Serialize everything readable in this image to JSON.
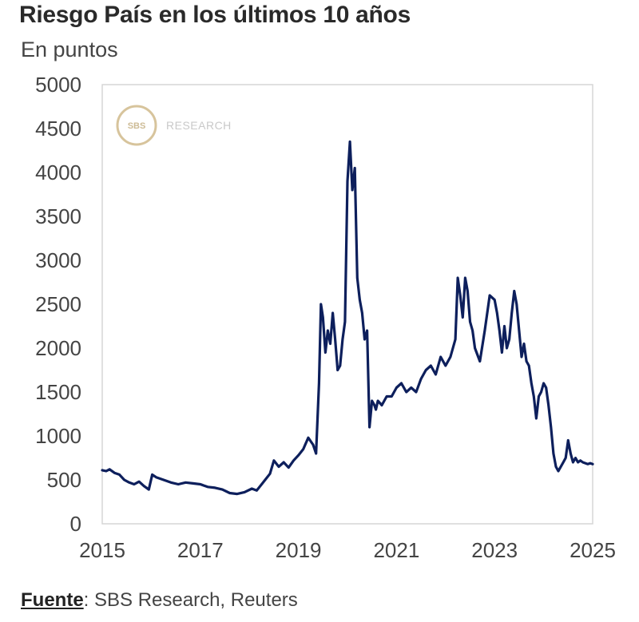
{
  "header": {
    "title": "Riesgo País en los últimos 10 años",
    "subtitle": "En puntos"
  },
  "source": {
    "label": "Fuente",
    "text": ": SBS Research, Reuters"
  },
  "watermark": {
    "badge": "SBS",
    "text": "RESEARCH"
  },
  "colors": {
    "line": "#0d1f5c",
    "frame": "#d6d6d6",
    "badge_ring": "#d7c49c"
  },
  "chart_data": {
    "type": "line",
    "title": "Riesgo País en los últimos 10 años",
    "subtitle": "En puntos",
    "xlabel": "",
    "ylabel": "",
    "xlim": [
      2015,
      2025
    ],
    "ylim": [
      0,
      5000
    ],
    "x_ticks": [
      2015,
      2017,
      2019,
      2021,
      2023,
      2025
    ],
    "y_ticks": [
      0,
      500,
      1000,
      1500,
      2000,
      2500,
      3000,
      3500,
      4000,
      4500,
      5000
    ],
    "grid": false,
    "series": [
      {
        "name": "Riesgo País",
        "x": [
          2015.0,
          2015.08,
          2015.15,
          2015.25,
          2015.35,
          2015.45,
          2015.55,
          2015.65,
          2015.75,
          2015.85,
          2015.95,
          2016.02,
          2016.1,
          2016.25,
          2016.4,
          2016.55,
          2016.7,
          2016.85,
          2017.0,
          2017.15,
          2017.3,
          2017.45,
          2017.6,
          2017.75,
          2017.9,
          2018.05,
          2018.15,
          2018.25,
          2018.35,
          2018.42,
          2018.5,
          2018.6,
          2018.7,
          2018.8,
          2018.9,
          2019.0,
          2019.1,
          2019.2,
          2019.3,
          2019.36,
          2019.42,
          2019.46,
          2019.5,
          2019.55,
          2019.6,
          2019.65,
          2019.7,
          2019.75,
          2019.8,
          2019.85,
          2019.9,
          2019.95,
          2020.0,
          2020.05,
          2020.1,
          2020.15,
          2020.2,
          2020.25,
          2020.3,
          2020.35,
          2020.4,
          2020.45,
          2020.5,
          2020.55,
          2020.58,
          2020.62,
          2020.7,
          2020.8,
          2020.9,
          2021.0,
          2021.1,
          2021.2,
          2021.3,
          2021.4,
          2021.5,
          2021.6,
          2021.7,
          2021.8,
          2021.9,
          2022.0,
          2022.1,
          2022.2,
          2022.25,
          2022.3,
          2022.35,
          2022.4,
          2022.45,
          2022.5,
          2022.55,
          2022.6,
          2022.7,
          2022.8,
          2022.9,
          2023.0,
          2023.05,
          2023.1,
          2023.15,
          2023.2,
          2023.25,
          2023.3,
          2023.35,
          2023.4,
          2023.45,
          2023.5,
          2023.55,
          2023.6,
          2023.65,
          2023.7,
          2023.75,
          2023.8,
          2023.85,
          2023.9,
          2023.95,
          2024.0,
          2024.05,
          2024.1,
          2024.15,
          2024.2,
          2024.25,
          2024.3,
          2024.35,
          2024.4,
          2024.45,
          2024.5,
          2024.55,
          2024.6,
          2024.65,
          2024.7,
          2024.75,
          2024.8,
          2024.85,
          2024.9,
          2024.95,
          2025.0
        ],
        "values": [
          610,
          600,
          620,
          580,
          560,
          500,
          470,
          450,
          480,
          430,
          390,
          560,
          530,
          500,
          470,
          450,
          470,
          460,
          450,
          420,
          410,
          390,
          350,
          340,
          360,
          400,
          380,
          450,
          520,
          570,
          720,
          650,
          700,
          640,
          720,
          780,
          850,
          980,
          900,
          800,
          1600,
          2500,
          2350,
          1950,
          2200,
          2050,
          2400,
          2100,
          1750,
          1800,
          2100,
          2300,
          3900,
          4350,
          3800,
          4050,
          2800,
          2550,
          2400,
          2100,
          2200,
          1100,
          1400,
          1350,
          1300,
          1400,
          1350,
          1450,
          1450,
          1550,
          1600,
          1500,
          1550,
          1500,
          1650,
          1750,
          1800,
          1700,
          1900,
          1800,
          1900,
          2100,
          2800,
          2600,
          2350,
          2800,
          2650,
          2300,
          2200,
          2000,
          1850,
          2200,
          2600,
          2550,
          2400,
          2200,
          1950,
          2250,
          2000,
          2100,
          2400,
          2650,
          2500,
          2200,
          1900,
          2050,
          1850,
          1800,
          1600,
          1450,
          1200,
          1450,
          1500,
          1600,
          1550,
          1350,
          1100,
          800,
          650,
          600,
          650,
          700,
          750,
          950,
          800,
          700,
          750,
          700,
          720,
          700,
          690,
          680,
          690,
          680
        ]
      }
    ]
  }
}
